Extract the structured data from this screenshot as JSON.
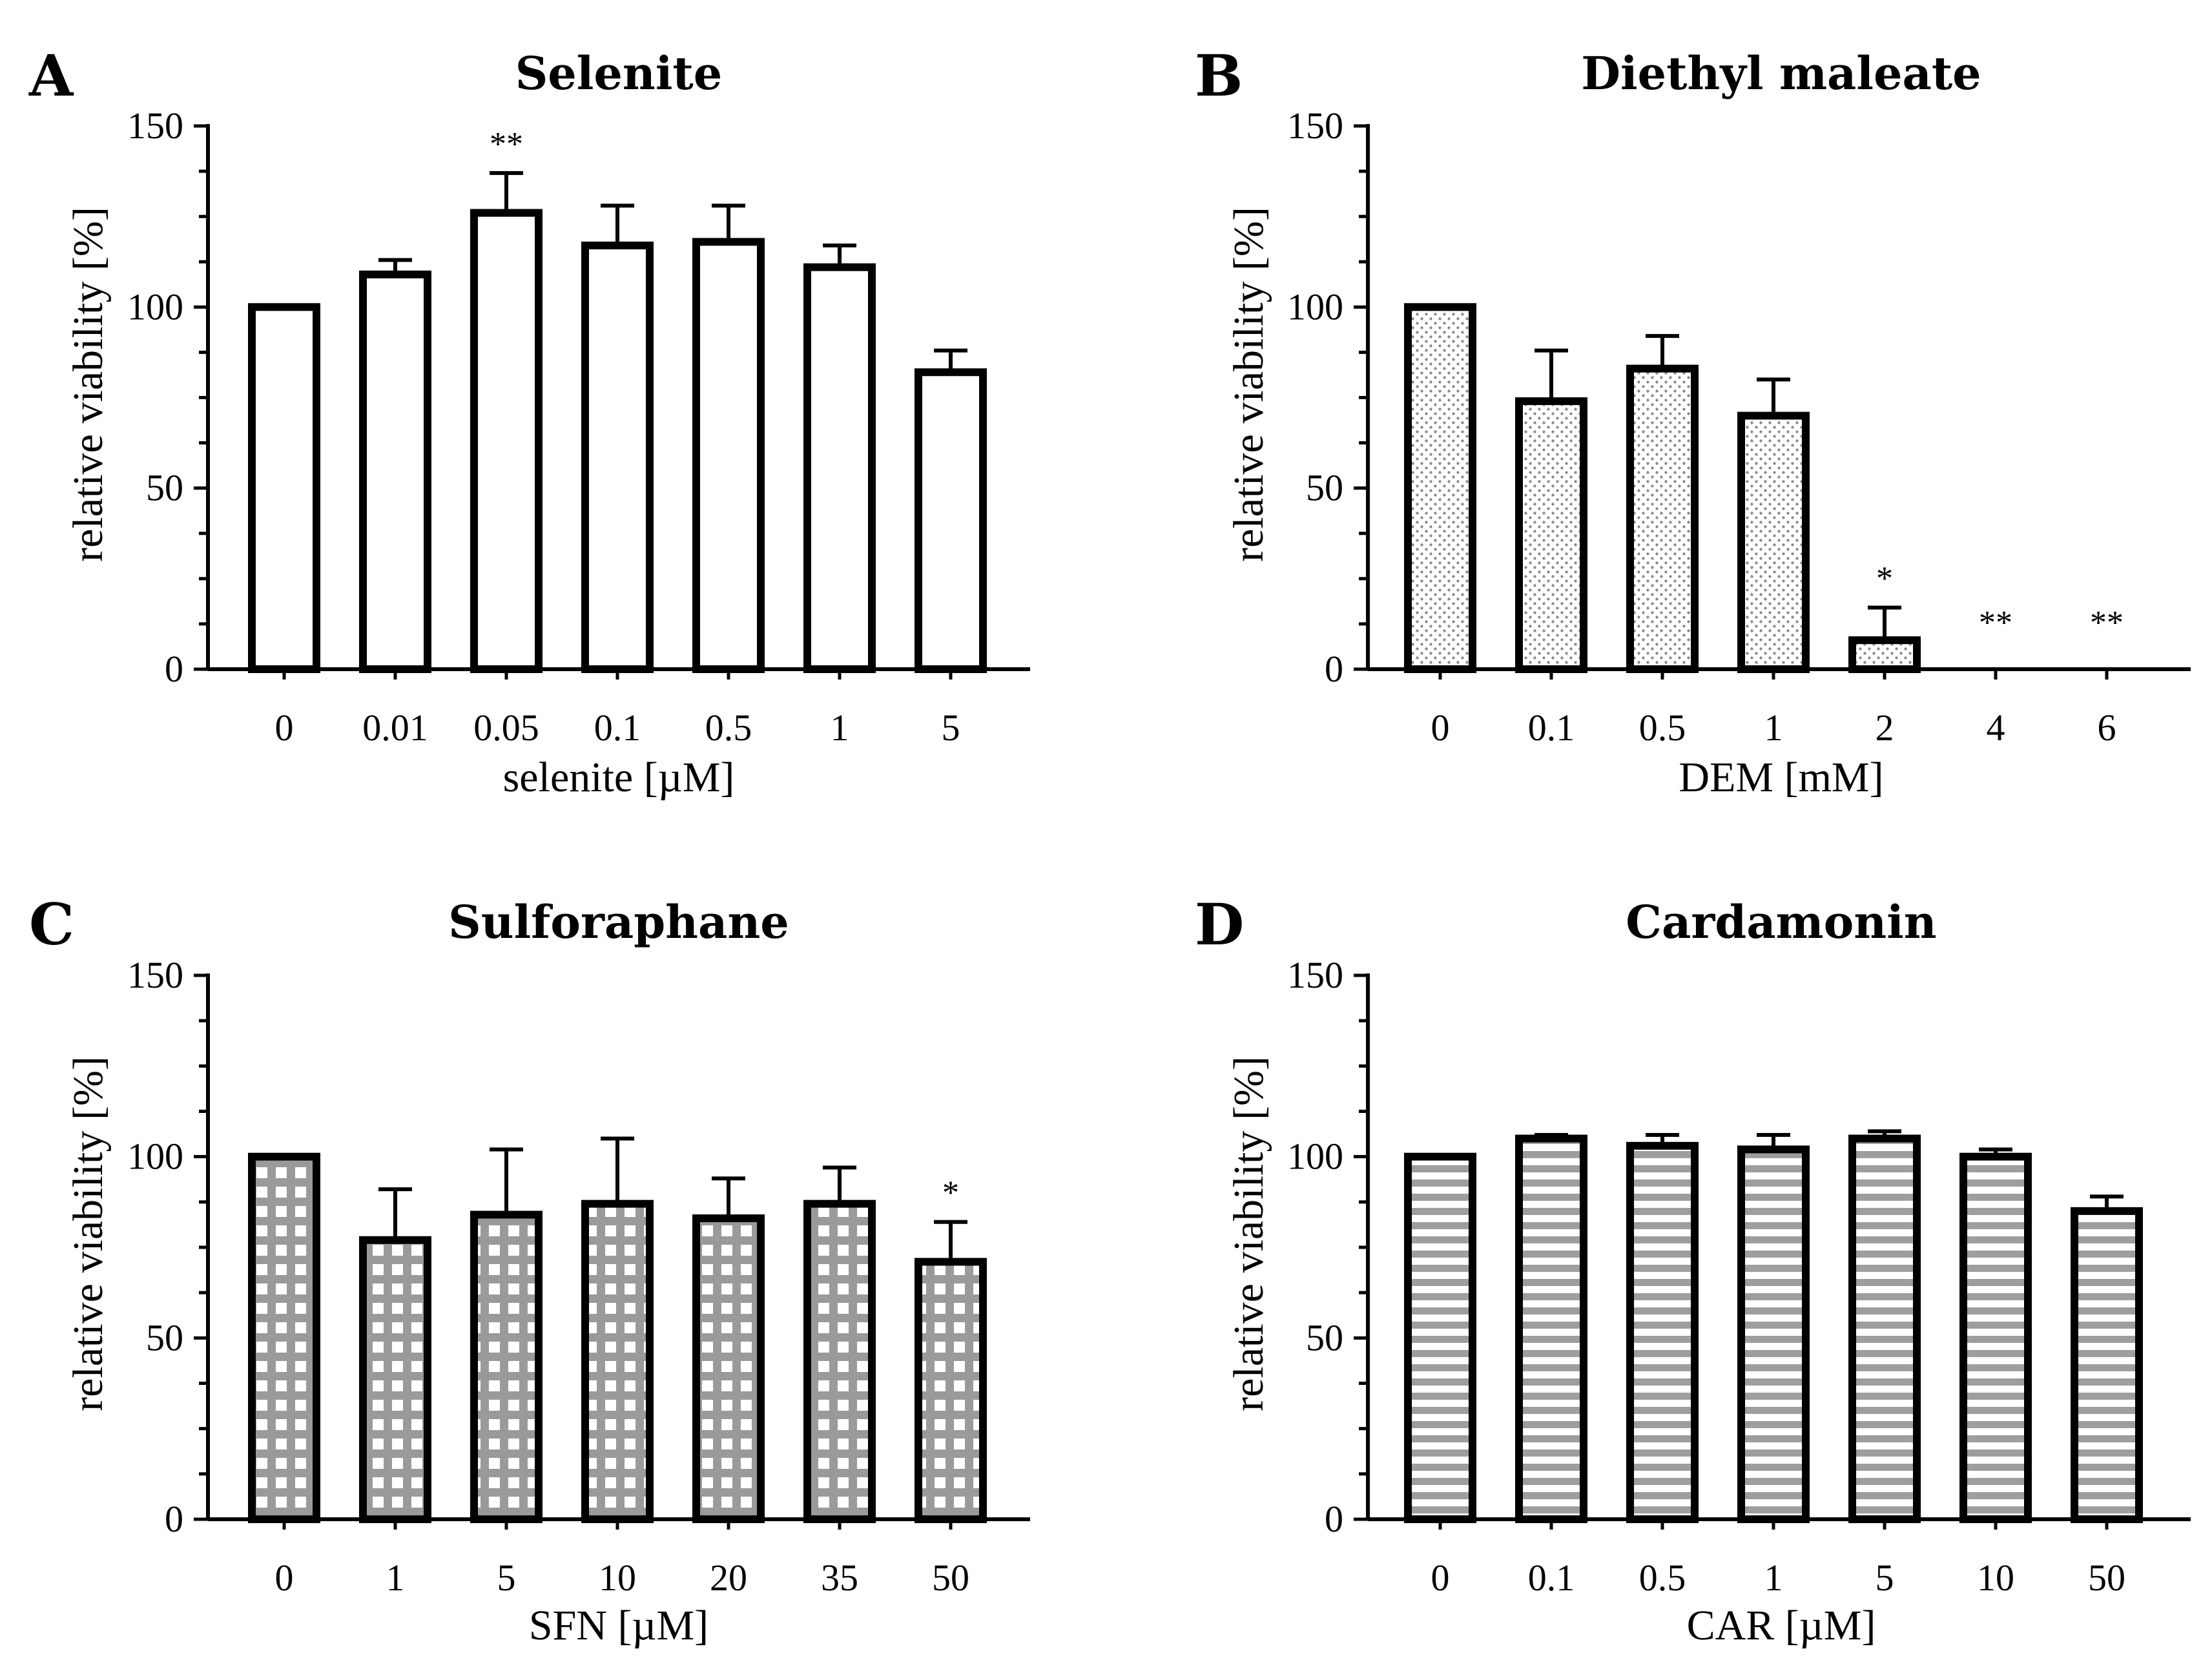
{
  "chart_data": [
    {
      "type": "bar",
      "panel": "A",
      "title": "Selenite",
      "xlabel": "selenite [µM]",
      "ylabel": "relative viability [%]",
      "ylim": [
        0,
        150
      ],
      "yticks": [
        0,
        50,
        100,
        150
      ],
      "fill": "plain",
      "categories": [
        "0",
        "0.01",
        "0.05",
        "0.1",
        "0.5",
        "1",
        "5"
      ],
      "values": [
        100,
        109,
        126,
        117,
        118,
        111,
        82
      ],
      "errors": [
        0,
        4,
        11,
        11,
        10,
        6,
        6
      ],
      "significance": [
        "",
        "",
        "**",
        "",
        "",
        "",
        ""
      ]
    },
    {
      "type": "bar",
      "panel": "B",
      "title": "Diethyl maleate",
      "xlabel": "DEM [mM]",
      "ylabel": "relative viability [%]",
      "ylim": [
        0,
        150
      ],
      "yticks": [
        0,
        50,
        100,
        150
      ],
      "fill": "dots",
      "categories": [
        "0",
        "0.1",
        "0.5",
        "1",
        "2",
        "4",
        "6"
      ],
      "values": [
        100,
        74,
        83,
        70,
        8,
        0,
        0
      ],
      "errors": [
        0,
        14,
        9,
        10,
        9,
        0,
        0
      ],
      "significance": [
        "",
        "",
        "",
        "",
        "*",
        "**",
        "**"
      ]
    },
    {
      "type": "bar",
      "panel": "C",
      "title": "Sulforaphane",
      "xlabel": "SFN [µM]",
      "ylabel": "relative viability [%]",
      "ylim": [
        0,
        150
      ],
      "yticks": [
        0,
        50,
        100,
        150
      ],
      "fill": "grid",
      "categories": [
        "0",
        "1",
        "5",
        "10",
        "20",
        "35",
        "50"
      ],
      "values": [
        100,
        77,
        84,
        87,
        83,
        87,
        71
      ],
      "errors": [
        0,
        14,
        18,
        18,
        11,
        10,
        11
      ],
      "significance": [
        "",
        "",
        "",
        "",
        "",
        "",
        "*"
      ]
    },
    {
      "type": "bar",
      "panel": "D",
      "title": "Cardamonin",
      "xlabel": "CAR [µM]",
      "ylabel": "relative viability [%]",
      "ylim": [
        0,
        150
      ],
      "yticks": [
        0,
        50,
        100,
        150
      ],
      "fill": "stripes",
      "categories": [
        "0",
        "0.1",
        "0.5",
        "1",
        "5",
        "10",
        "50"
      ],
      "values": [
        100,
        105,
        103,
        102,
        105,
        100,
        85
      ],
      "errors": [
        0,
        1,
        3,
        4,
        2,
        2,
        4
      ],
      "significance": [
        "",
        "",
        "",
        "",
        "",
        "",
        ""
      ]
    }
  ],
  "colors": {
    "axis": "#000000",
    "bar_outline": "#000000",
    "pattern_fill": "#9a9a9a",
    "background": "#ffffff"
  }
}
